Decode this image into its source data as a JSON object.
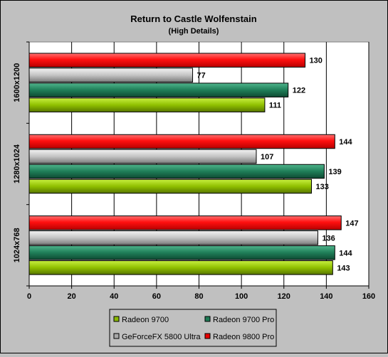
{
  "chart_data": {
    "type": "bar",
    "orientation": "horizontal",
    "title": "Return to Castle Wolfenstain",
    "subtitle": "(High Details)",
    "xlabel": "",
    "ylabel": "",
    "xlim": [
      0,
      160
    ],
    "x_ticks": [
      0,
      20,
      40,
      60,
      80,
      100,
      120,
      140,
      160
    ],
    "grid": true,
    "legend_position": "bottom",
    "categories": [
      "1600x1200",
      "1280x1024",
      "1024x768"
    ],
    "series": [
      {
        "name": "Radeon 9800 Pro",
        "color": "#e80000",
        "values": [
          130,
          144,
          147
        ]
      },
      {
        "name": "GeForceFX 5800 Ultra",
        "color": "#a8a8a8",
        "values": [
          77,
          107,
          136
        ]
      },
      {
        "name": "Radeon 9700 Pro",
        "color": "#1e7a55",
        "values": [
          122,
          139,
          144
        ]
      },
      {
        "name": "Radeon 9700",
        "color": "#8ab800",
        "values": [
          111,
          133,
          143
        ]
      }
    ],
    "legend_order": [
      "Radeon 9700",
      "Radeon 9700 Pro",
      "GeForceFX 5800 Ultra",
      "Radeon 9800 Pro"
    ]
  }
}
